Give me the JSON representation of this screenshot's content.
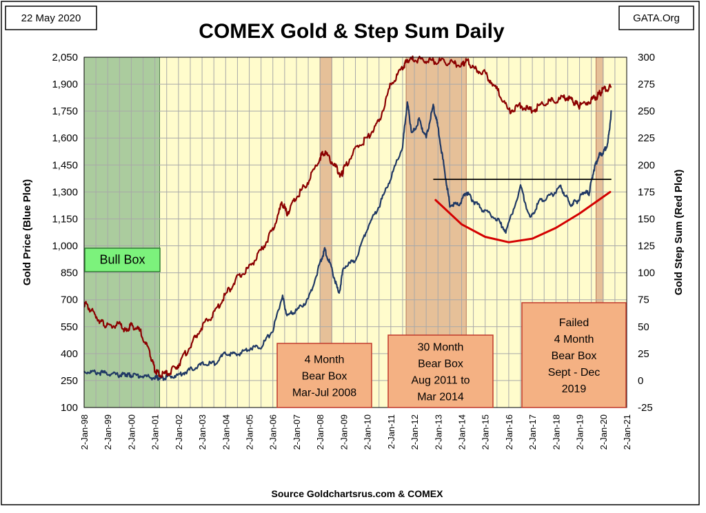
{
  "chart_data": {
    "type": "line",
    "title": "COMEX Gold & Step Sum Daily",
    "date_label": "22 May 2020",
    "publisher": "GATA.Org",
    "source": "Source Goldchartsrus.com & COMEX",
    "y_left_label": "Gold Price   (Blue Plot)",
    "y_right_label": "Gold Step Sum   (Red Plot)",
    "ylim_left": [
      100,
      2050
    ],
    "ylim_right": [
      -25,
      300
    ],
    "y_left_ticks": [
      "100",
      "250",
      "400",
      "550",
      "700",
      "850",
      "1,000",
      "1,150",
      "1,300",
      "1,450",
      "1,600",
      "1,750",
      "1,900",
      "2,050"
    ],
    "y_right_ticks": [
      "-25",
      "0",
      "25",
      "50",
      "75",
      "100",
      "125",
      "150",
      "175",
      "200",
      "225",
      "250",
      "275",
      "300"
    ],
    "x_ticks": [
      "2-Jan-98",
      "2-Jan-99",
      "2-Jan-00",
      "2-Jan-01",
      "2-Jan-02",
      "2-Jan-03",
      "2-Jan-04",
      "2-Jan-05",
      "2-Jan-06",
      "2-Jan-07",
      "2-Jan-08",
      "2-Jan-09",
      "2-Jan-10",
      "2-Jan-11",
      "2-Jan-12",
      "2-Jan-13",
      "2-Jan-14",
      "2-Jan-15",
      "2-Jan-16",
      "2-Jan-17",
      "2-Jan-18",
      "2-Jan-19",
      "2-Jan-20",
      "2-Jan-21"
    ],
    "xlim": [
      1998.0,
      2021.0
    ],
    "grid": true,
    "colors": {
      "plot_bg": "#fffccc",
      "grid": "#a8a8a8",
      "gold_price": "#1f3864",
      "step_sum": "#8b0000",
      "bull_box": "#8fbc8f",
      "bear_box": "#d9a07c",
      "label_fill": "#f4b183",
      "label_stroke": "#c0392b",
      "bull_label_fill": "#7cf27c",
      "trend_curve": "#d40000",
      "resistance_line": "#000000"
    },
    "series": [
      {
        "key": "gold_price",
        "axis": "left",
        "x": [
          1998.0,
          1998.5,
          1999.0,
          1999.5,
          1999.8,
          2000.0,
          2000.5,
          2001.0,
          2001.25,
          2001.5,
          2002.0,
          2002.5,
          2003.0,
          2003.5,
          2004.0,
          2004.5,
          2005.0,
          2005.5,
          2006.0,
          2006.4,
          2006.6,
          2007.0,
          2007.5,
          2008.0,
          2008.2,
          2008.5,
          2008.8,
          2009.0,
          2009.5,
          2010.0,
          2010.5,
          2011.0,
          2011.5,
          2011.7,
          2011.9,
          2012.2,
          2012.5,
          2012.8,
          2013.0,
          2013.3,
          2013.5,
          2013.9,
          2014.2,
          2014.5,
          2014.9,
          2015.5,
          2015.9,
          2016.5,
          2016.9,
          2017.3,
          2017.8,
          2018.2,
          2018.6,
          2018.9,
          2019.2,
          2019.4,
          2019.6,
          2019.8,
          2020.0,
          2020.2,
          2020.35
        ],
        "y": [
          300,
          295,
          290,
          280,
          285,
          280,
          275,
          265,
          263,
          270,
          280,
          310,
          340,
          345,
          400,
          395,
          430,
          440,
          530,
          720,
          610,
          640,
          700,
          900,
          980,
          870,
          730,
          880,
          920,
          1100,
          1220,
          1380,
          1550,
          1800,
          1620,
          1700,
          1600,
          1780,
          1660,
          1400,
          1230,
          1230,
          1300,
          1250,
          1200,
          1150,
          1080,
          1330,
          1150,
          1250,
          1280,
          1330,
          1230,
          1250,
          1300,
          1290,
          1420,
          1500,
          1520,
          1570,
          1750
        ]
      },
      {
        "key": "step_sum",
        "axis": "right",
        "x": [
          1998.0,
          1998.3,
          1998.7,
          1999.0,
          1999.5,
          1999.8,
          2000.0,
          2000.4,
          2000.8,
          2001.0,
          2001.2,
          2001.6,
          2002.0,
          2002.5,
          2003.0,
          2003.5,
          2004.0,
          2004.5,
          2005.0,
          2005.5,
          2006.0,
          2006.4,
          2006.6,
          2007.0,
          2007.5,
          2008.0,
          2008.2,
          2008.6,
          2008.9,
          2009.0,
          2009.5,
          2010.0,
          2010.5,
          2011.0,
          2011.5,
          2011.7,
          2012.0,
          2012.5,
          2013.0,
          2013.5,
          2014.0,
          2014.2,
          2014.5,
          2015.0,
          2015.5,
          2016.0,
          2016.5,
          2017.0,
          2017.5,
          2018.0,
          2018.5,
          2018.8,
          2019.0,
          2019.5,
          2019.8,
          2020.0,
          2020.35
        ],
        "y": [
          72,
          65,
          55,
          50,
          52,
          45,
          52,
          45,
          25,
          10,
          5,
          7,
          15,
          32,
          50,
          62,
          80,
          95,
          105,
          120,
          140,
          165,
          155,
          170,
          185,
          207,
          212,
          200,
          190,
          196,
          215,
          225,
          240,
          275,
          290,
          298,
          298,
          297,
          296,
          295,
          292,
          297,
          290,
          285,
          270,
          250,
          255,
          250,
          258,
          260,
          263,
          258,
          255,
          260,
          265,
          270,
          272
        ]
      }
    ],
    "regions": [
      {
        "type": "bull",
        "x0": 1998.0,
        "x1": 2001.2,
        "label": "Bull Box"
      },
      {
        "type": "bear",
        "x0": 2008.0,
        "x1": 2008.5,
        "label": "4 Month Bear Box Mar-Jul 2008"
      },
      {
        "type": "bear",
        "x0": 2011.65,
        "x1": 2014.2,
        "label": "30 Month Bear Box Aug 2011 to Mar 2014"
      },
      {
        "type": "bear",
        "x0": 2019.7,
        "x1": 2020.0,
        "label": "Failed 4 Month Bear Box Sept - Dec 2019"
      }
    ],
    "annotations": {
      "bull_box_label": [
        "Bull Box"
      ],
      "bear_box_2008": [
        "4 Month",
        "Bear Box",
        "Mar-Jul 2008"
      ],
      "bear_box_2011": [
        "30 Month",
        "Bear Box",
        "Aug 2011 to",
        "Mar 2014"
      ],
      "bear_box_2019": [
        "Failed",
        "4 Month",
        "Bear Box",
        "Sept - Dec",
        "2019"
      ]
    },
    "resistance_line": {
      "x0": 2012.8,
      "x1": 2020.35,
      "y": 1370
    },
    "trend_curve": {
      "x": [
        2012.9,
        2014.0,
        2015.0,
        2016.0,
        2017.0,
        2018.0,
        2019.0,
        2020.3
      ],
      "y": [
        1255,
        1120,
        1050,
        1020,
        1040,
        1100,
        1180,
        1300
      ]
    }
  }
}
